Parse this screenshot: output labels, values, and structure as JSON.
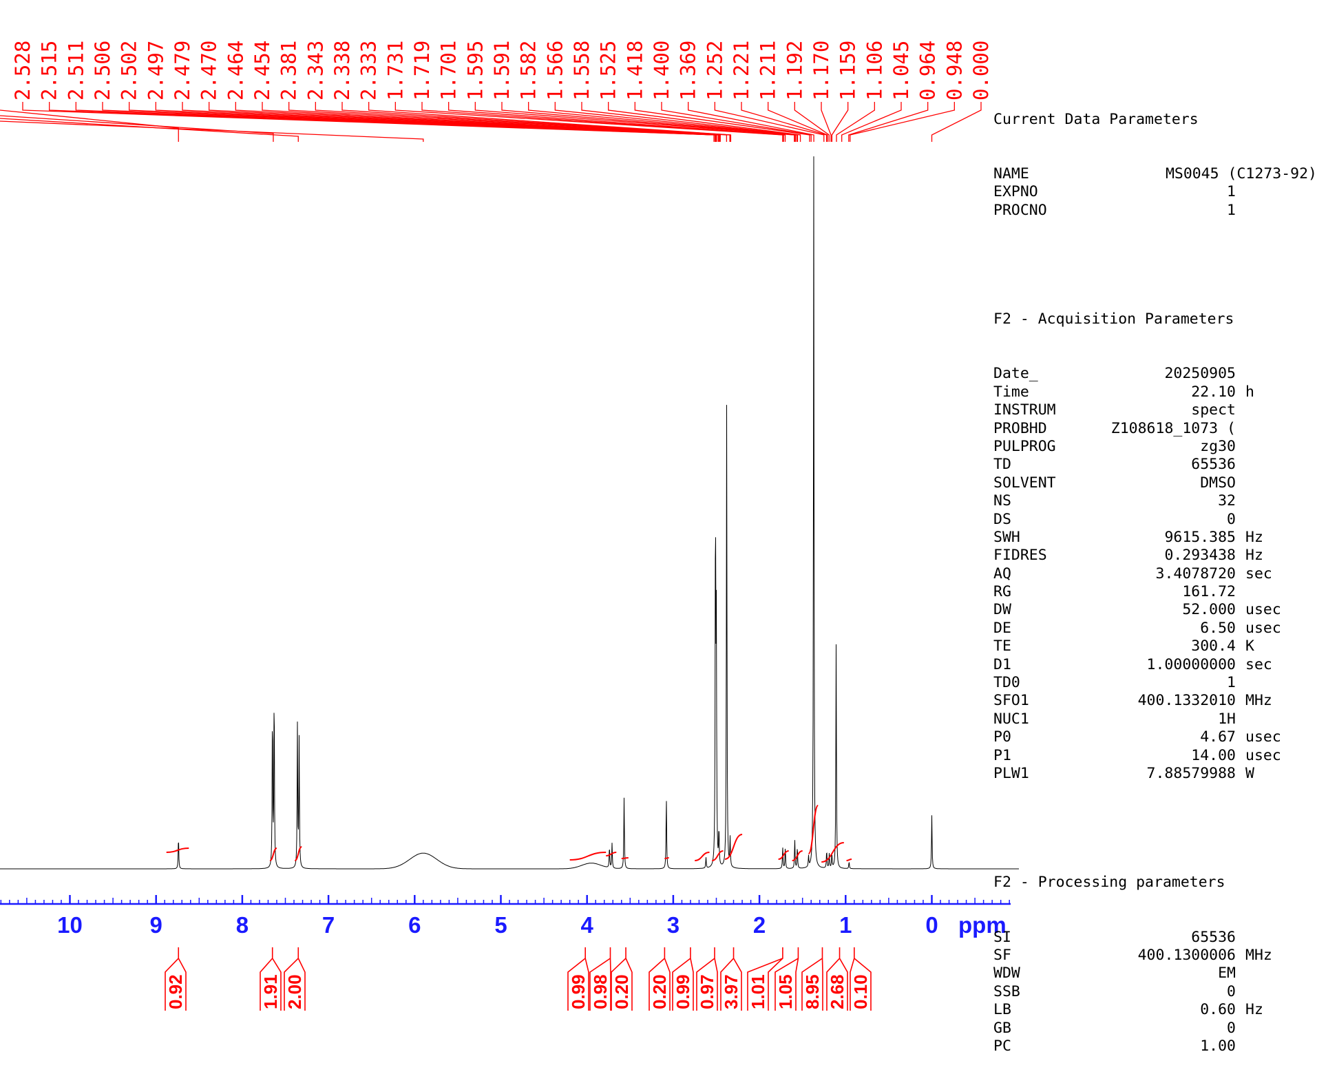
{
  "chart_data": {
    "type": "line",
    "xlabel": "ppm",
    "xlim": [
      11.0,
      -1.0
    ],
    "x_ticks": [
      "10",
      "9",
      "8",
      "7",
      "6",
      "5",
      "4",
      "3",
      "2",
      "1",
      "0"
    ],
    "peak_labels": [
      "2.528",
      "2.515",
      "2.511",
      "2.506",
      "2.502",
      "2.497",
      "2.479",
      "2.470",
      "2.464",
      "2.454",
      "2.381",
      "2.343",
      "2.338",
      "2.333",
      "1.731",
      "1.719",
      "1.701",
      "1.595",
      "1.591",
      "1.582",
      "1.566",
      "1.558",
      "1.525",
      "1.418",
      "1.400",
      "1.369",
      "1.252",
      "1.221",
      "1.211",
      "1.192",
      "1.170",
      "1.159",
      "1.106",
      "1.045",
      "0.964",
      "0.948",
      "0.000"
    ],
    "peaks": [
      {
        "ppm": 8.74,
        "h": 0.045
      },
      {
        "ppm": 7.65,
        "h": 0.22
      },
      {
        "ppm": 7.63,
        "h": 0.25
      },
      {
        "ppm": 7.36,
        "h": 0.2
      },
      {
        "ppm": 7.34,
        "h": 0.18
      },
      {
        "ppm": 3.74,
        "h": 0.03
      },
      {
        "ppm": 3.71,
        "h": 0.035
      },
      {
        "ppm": 3.57,
        "h": 0.1
      },
      {
        "ppm": 3.08,
        "h": 0.1
      },
      {
        "ppm": 2.62,
        "h": 0.015
      },
      {
        "ppm": 2.51,
        "h": 0.5
      },
      {
        "ppm": 2.5,
        "h": 0.32
      },
      {
        "ppm": 2.47,
        "h": 0.05
      },
      {
        "ppm": 2.38,
        "h": 0.65
      },
      {
        "ppm": 2.34,
        "h": 0.04
      },
      {
        "ppm": 1.73,
        "h": 0.03
      },
      {
        "ppm": 1.7,
        "h": 0.03
      },
      {
        "ppm": 1.59,
        "h": 0.04
      },
      {
        "ppm": 1.56,
        "h": 0.03
      },
      {
        "ppm": 1.43,
        "h": 0.015
      },
      {
        "ppm": 1.37,
        "h": 1.0
      },
      {
        "ppm": 1.22,
        "h": 0.025
      },
      {
        "ppm": 1.19,
        "h": 0.02
      },
      {
        "ppm": 1.16,
        "h": 0.02
      },
      {
        "ppm": 1.11,
        "h": 0.315
      },
      {
        "ppm": 0.96,
        "h": 0.01
      },
      {
        "ppm": 0.0,
        "h": 0.075
      }
    ],
    "broad_peaks": [
      {
        "ppm": 5.9,
        "h": 0.022,
        "w": 0.35
      },
      {
        "ppm": 3.95,
        "h": 0.008,
        "w": 0.25
      }
    ],
    "integrals": [
      "0.92",
      "1.91",
      "2.00",
      "0.99",
      "0.98",
      "0.20",
      "0.20",
      "0.99",
      "0.97",
      "3.97",
      "1.01",
      "1.05",
      "8.95",
      "2.68",
      "0.10"
    ]
  },
  "params": {
    "current_title": "Current Data Parameters",
    "current": [
      {
        "k": "NAME",
        "v": "MS0045 (C1273-92)",
        "u": ""
      },
      {
        "k": "EXPNO",
        "v": "1",
        "u": ""
      },
      {
        "k": "PROCNO",
        "v": "1",
        "u": ""
      }
    ],
    "acq_title": "F2 - Acquisition Parameters",
    "acq": [
      {
        "k": "Date_",
        "v": "20250905",
        "u": ""
      },
      {
        "k": "Time",
        "v": "22.10",
        "u": "h"
      },
      {
        "k": "INSTRUM",
        "v": "spect",
        "u": ""
      },
      {
        "k": "PROBHD",
        "v": "Z108618_1073 (",
        "u": ""
      },
      {
        "k": "PULPROG",
        "v": "zg30",
        "u": ""
      },
      {
        "k": "TD",
        "v": "65536",
        "u": ""
      },
      {
        "k": "SOLVENT",
        "v": "DMSO",
        "u": ""
      },
      {
        "k": "NS",
        "v": "32",
        "u": ""
      },
      {
        "k": "DS",
        "v": "0",
        "u": ""
      },
      {
        "k": "SWH",
        "v": "9615.385",
        "u": "Hz"
      },
      {
        "k": "FIDRES",
        "v": "0.293438",
        "u": "Hz"
      },
      {
        "k": "AQ",
        "v": "3.4078720",
        "u": "sec"
      },
      {
        "k": "RG",
        "v": "161.72",
        "u": ""
      },
      {
        "k": "DW",
        "v": "52.000",
        "u": "usec"
      },
      {
        "k": "DE",
        "v": "6.50",
        "u": "usec"
      },
      {
        "k": "TE",
        "v": "300.4",
        "u": "K"
      },
      {
        "k": "D1",
        "v": "1.00000000",
        "u": "sec"
      },
      {
        "k": "TD0",
        "v": "1",
        "u": ""
      },
      {
        "k": "SFO1",
        "v": "400.1332010",
        "u": "MHz"
      },
      {
        "k": "NUC1",
        "v": "1H",
        "u": ""
      },
      {
        "k": "P0",
        "v": "4.67",
        "u": "usec"
      },
      {
        "k": "P1",
        "v": "14.00",
        "u": "usec"
      },
      {
        "k": "PLW1",
        "v": "7.88579988",
        "u": "W"
      }
    ],
    "proc_title": "F2 - Processing parameters",
    "proc": [
      {
        "k": "SI",
        "v": "65536",
        "u": ""
      },
      {
        "k": "SF",
        "v": "400.1300006",
        "u": "MHz"
      },
      {
        "k": "WDW",
        "v": "EM",
        "u": ""
      },
      {
        "k": "SSB",
        "v": "0",
        "u": ""
      },
      {
        "k": "LB",
        "v": "0.60",
        "u": "Hz"
      },
      {
        "k": "GB",
        "v": "0",
        "u": ""
      },
      {
        "k": "PC",
        "v": "1.00",
        "u": ""
      }
    ]
  }
}
